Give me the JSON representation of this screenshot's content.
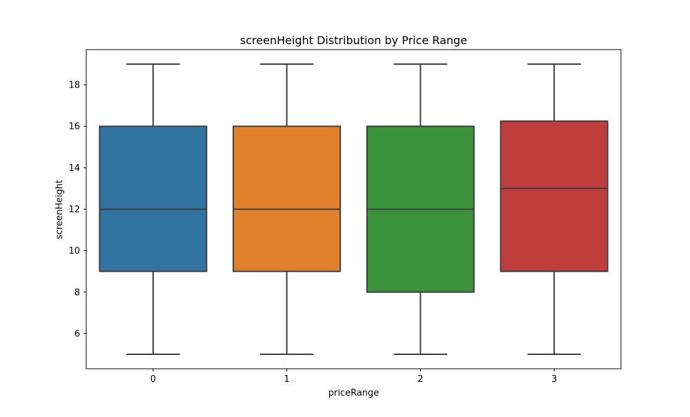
{
  "chart_data": {
    "type": "box",
    "title": "screenHeight Distribution by Price Range",
    "xlabel": "priceRange",
    "ylabel": "screenHeight",
    "categories": [
      "0",
      "1",
      "2",
      "3"
    ],
    "boxes": [
      {
        "category": "0",
        "whisker_low": 5,
        "q1": 9,
        "median": 12,
        "q3": 16,
        "whisker_high": 19,
        "color": "#3274a1"
      },
      {
        "category": "1",
        "whisker_low": 5,
        "q1": 9,
        "median": 12,
        "q3": 16,
        "whisker_high": 19,
        "color": "#e1812c"
      },
      {
        "category": "2",
        "whisker_low": 5,
        "q1": 8,
        "median": 12,
        "q3": 16,
        "whisker_high": 19,
        "color": "#3a923a"
      },
      {
        "category": "3",
        "whisker_low": 5,
        "q1": 9,
        "median": 13,
        "q3": 16.25,
        "whisker_high": 19,
        "color": "#c03d3e"
      }
    ],
    "ylim": [
      4.3,
      19.7
    ],
    "yticks": [
      6,
      8,
      10,
      12,
      14,
      16,
      18
    ],
    "grid": false,
    "line_color": "#3f3f3f"
  }
}
